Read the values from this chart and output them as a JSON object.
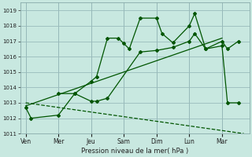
{
  "background_color": "#c8e8e0",
  "grid_color": "#99bbbb",
  "line_color": "#005500",
  "xlabel": "Pression niveau de la mer( hPa )",
  "ylim": [
    1011,
    1019.5
  ],
  "yticks": [
    1011,
    1012,
    1013,
    1014,
    1015,
    1016,
    1017,
    1018,
    1019
  ],
  "x_labels": [
    "Ven",
    "Mer",
    "Jeu",
    "Sam",
    "Dim",
    "Lun",
    "Mar"
  ],
  "x_ticks": [
    0,
    12,
    24,
    36,
    48,
    60,
    72
  ],
  "xlim": [
    -2,
    82
  ],
  "series_main": {
    "x": [
      0,
      2,
      12,
      18,
      24,
      26,
      30,
      34,
      36,
      38,
      42,
      48,
      50,
      54,
      60,
      62,
      66,
      72,
      74,
      78
    ],
    "y": [
      1012.7,
      1012.0,
      1012.2,
      1013.6,
      1014.4,
      1014.7,
      1017.2,
      1017.2,
      1016.85,
      1016.5,
      1018.5,
      1018.5,
      1017.5,
      1016.9,
      1018.0,
      1018.8,
      1016.5,
      1017.0,
      1016.5,
      1017.0
    ]
  },
  "series_second": {
    "x": [
      12,
      18,
      24,
      26,
      30,
      42,
      48,
      54,
      60,
      62,
      66,
      72,
      74,
      78
    ],
    "y": [
      1013.6,
      1013.6,
      1013.1,
      1013.1,
      1013.3,
      1016.3,
      1016.4,
      1016.6,
      1017.0,
      1017.5,
      1016.5,
      1016.7,
      1013.0,
      1013.0
    ]
  },
  "line_up": {
    "x": [
      0,
      72
    ],
    "y": [
      1012.8,
      1017.2
    ]
  },
  "line_down": {
    "x": [
      0,
      80
    ],
    "y": [
      1013.0,
      1011.0
    ]
  }
}
